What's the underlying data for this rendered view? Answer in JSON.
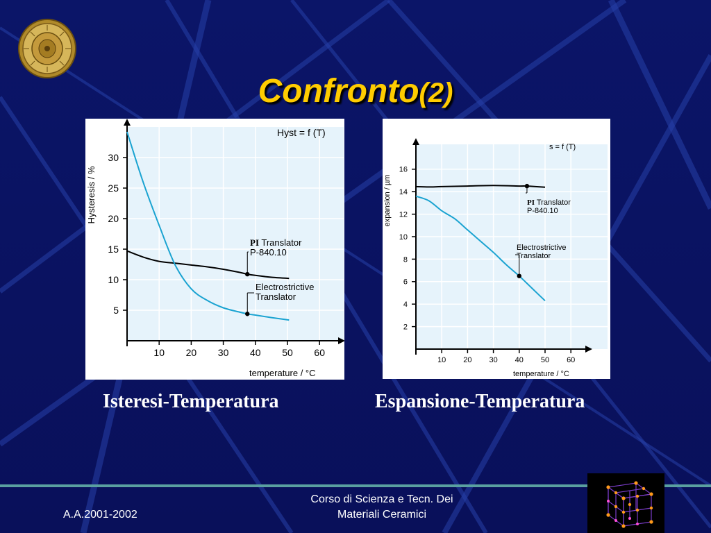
{
  "slide": {
    "title": "Confronto",
    "title_suffix": "(2)",
    "footer_left": "A.A.2001-2002",
    "footer_center_line1": "Corso di Scienza e Tecn. Dei",
    "footer_center_line2": "Materiali Ceramici"
  },
  "colors": {
    "background": "#0a1160",
    "title": "#ffcc00",
    "curve_pi": "#000000",
    "curve_electrostrictive": "#1aa3d1",
    "plot_fill": "#e6f3fb",
    "footer_line": "#5aa0a0"
  },
  "chart_data": [
    {
      "type": "line",
      "caption": "Isteresi-Temperatura",
      "title": "Hyst = f (T)",
      "xlabel": "temperature / °C",
      "ylabel": "Hysteresis / %",
      "xlim": [
        0,
        70
      ],
      "ylim": [
        0,
        36
      ],
      "x_ticks": [
        10,
        20,
        30,
        40,
        50,
        60
      ],
      "y_ticks": [
        5,
        10,
        15,
        20,
        25,
        30
      ],
      "grid": true,
      "series": [
        {
          "name": "PI Translator P-840.10",
          "label_bold": "PI",
          "label_rest": " Translator",
          "label_line2": "P-840.10",
          "x": [
            0,
            5,
            10,
            15,
            20,
            25,
            30,
            35,
            37.5,
            40,
            45,
            50.5
          ],
          "y": [
            14.7,
            13.7,
            13.0,
            12.7,
            12.4,
            12.1,
            11.7,
            11.2,
            10.9,
            10.7,
            10.4,
            10.2
          ],
          "marker_x": 37.5,
          "marker_y": 10.9
        },
        {
          "name": "Electrostrictive Translator",
          "label_line1": "Electrostrictive",
          "label_line2": "Translator",
          "x": [
            0,
            5,
            10,
            15,
            20,
            25,
            30,
            35,
            37.5,
            40,
            45,
            50.5
          ],
          "y": [
            34.2,
            26,
            18.9,
            12.4,
            8.5,
            6.6,
            5.4,
            4.7,
            4.4,
            4.2,
            3.8,
            3.4
          ],
          "marker_x": 37.5,
          "marker_y": 4.4
        }
      ]
    },
    {
      "type": "line",
      "caption": "Espansione-Temperatura",
      "title": "s = f (T)",
      "xlabel": "temperature / °C",
      "ylabel": "expansion / µm",
      "xlim": [
        0,
        68
      ],
      "ylim": [
        0,
        18
      ],
      "x_ticks": [
        10,
        20,
        30,
        40,
        50,
        60
      ],
      "y_ticks": [
        2,
        4,
        6,
        8,
        10,
        12,
        14,
        16
      ],
      "grid": true,
      "series": [
        {
          "name": "PI Translator P-840.10",
          "label_bold": "PI",
          "label_rest": " Translator",
          "label_line2": "P-840.10",
          "x": [
            0,
            5,
            10,
            20,
            30,
            40,
            43,
            50
          ],
          "y": [
            14.45,
            14.42,
            14.45,
            14.5,
            14.55,
            14.5,
            14.5,
            14.4
          ],
          "marker_x": 43,
          "marker_y": 14.5
        },
        {
          "name": "Electrostrictive Translator",
          "label_line1": "Electrostrictive",
          "label_line2": "Translator",
          "x": [
            0,
            5,
            10,
            15,
            20,
            25,
            30,
            35,
            40,
            45,
            50
          ],
          "y": [
            13.6,
            13.2,
            12.3,
            11.6,
            10.6,
            9.6,
            8.6,
            7.5,
            6.5,
            5.4,
            4.3
          ],
          "marker_x": 40,
          "marker_y": 6.5
        }
      ]
    }
  ]
}
